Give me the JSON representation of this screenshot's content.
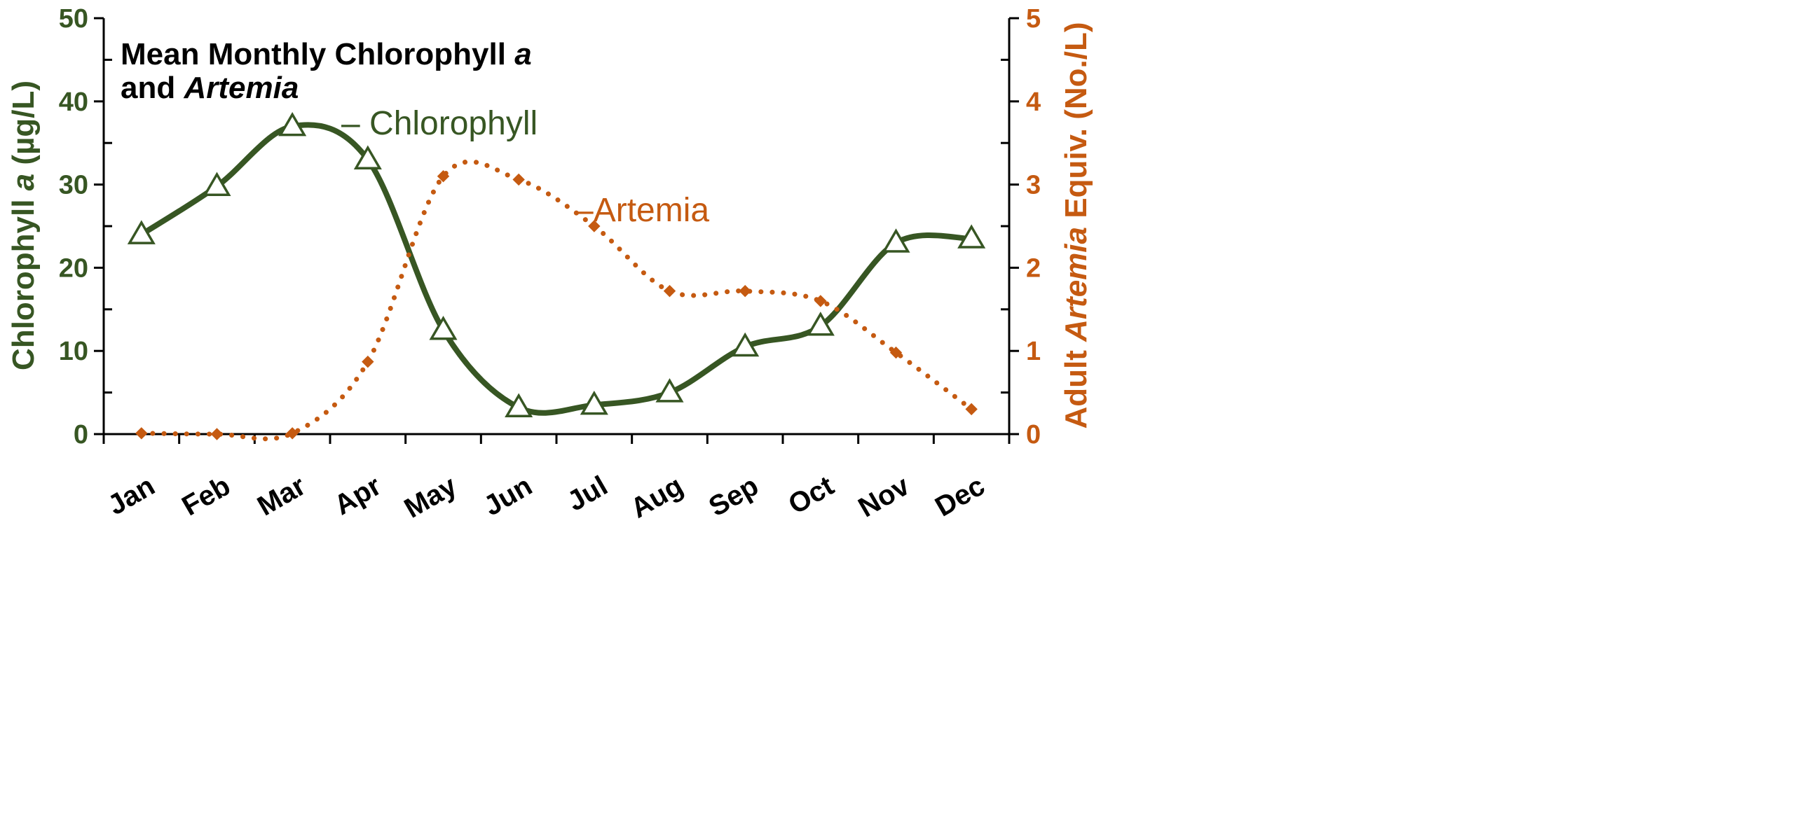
{
  "chart_data": {
    "type": "line",
    "title_line1": "Mean Monthly Chlorophyll ",
    "title_line1_italic": "a",
    "title_line2": "and ",
    "title_line2_italic": "Artemia",
    "categories": [
      "Jan",
      "Feb",
      "Mar",
      "Apr",
      "May",
      "Jun",
      "Jul",
      "Aug",
      "Sep",
      "Oct",
      "Nov",
      "Dec"
    ],
    "ylabel_left": {
      "pre": "Chlorophyll ",
      "italic": "a",
      "post": "  (µg/L)"
    },
    "ylabel_right": {
      "pre": "Adult ",
      "italic": "Artemia",
      "post": " Equiv.  (No./L)"
    },
    "ylim_left": [
      0,
      50
    ],
    "yticks_left": [
      "0",
      "10",
      "20",
      "30",
      "40",
      "50"
    ],
    "ylim_right": [
      0,
      5
    ],
    "yticks_right": [
      "0",
      "1",
      "2",
      "3",
      "4",
      "5"
    ],
    "series": [
      {
        "name": "Chlorophyll",
        "label": "Chlorophyll",
        "axis": "left",
        "color": "#375623",
        "line_style": "solid",
        "marker": "open-triangle",
        "values": [
          24,
          29.8,
          37,
          33,
          12.5,
          3.2,
          3.5,
          5,
          10.5,
          13,
          23,
          23.5
        ]
      },
      {
        "name": "Artemia",
        "label": "Artemia",
        "axis": "right",
        "color": "#C55A11",
        "line_style": "dotted",
        "marker": "diamond",
        "values": [
          0.01,
          0,
          0.01,
          0.87,
          3.1,
          3.06,
          2.5,
          1.72,
          1.72,
          1.6,
          0.98,
          0.3
        ]
      }
    ]
  }
}
